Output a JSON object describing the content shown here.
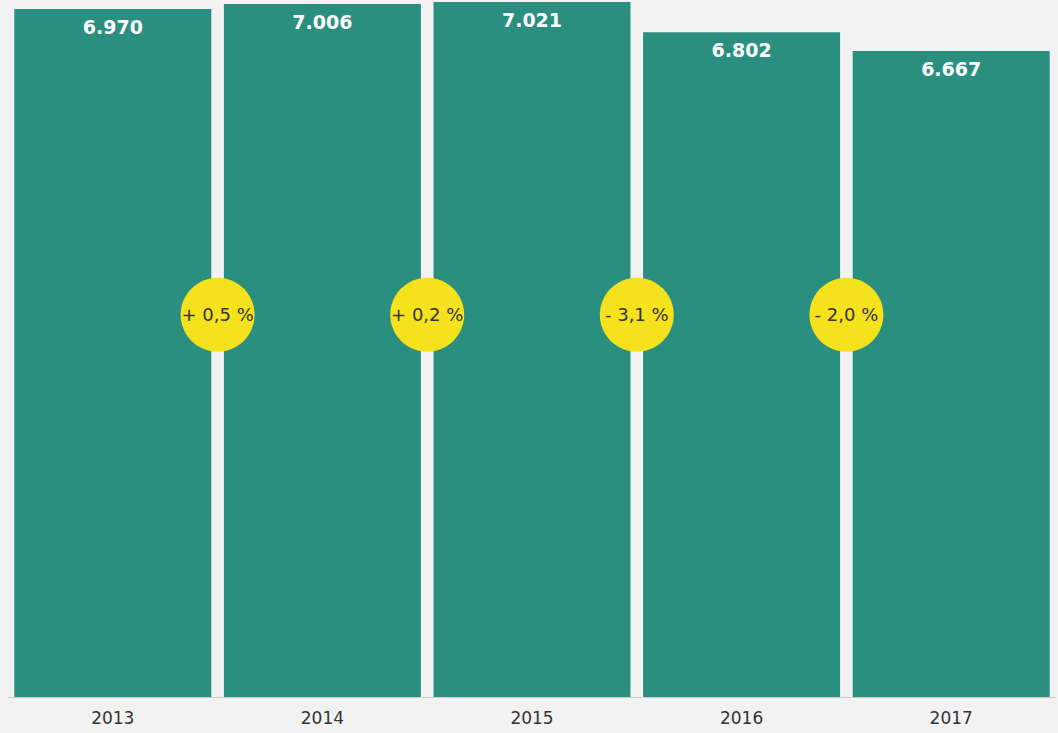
{
  "chart_data": {
    "type": "bar",
    "categories": [
      "2013",
      "2014",
      "2015",
      "2016",
      "2017"
    ],
    "values": [
      6970,
      7006,
      7021,
      6802,
      6667
    ],
    "value_labels": [
      "6.970",
      "7.006",
      "7.021",
      "6.802",
      "6.667"
    ],
    "data_labels": true,
    "color": "#2b8f80",
    "ylim": [
      2000,
      7021
    ],
    "tick_labels": "x",
    "grid": false,
    "annotations": [
      "+ 0,5 %",
      "+ 0,2 %",
      "- 3,1 %",
      "- 2,0 %"
    ]
  }
}
